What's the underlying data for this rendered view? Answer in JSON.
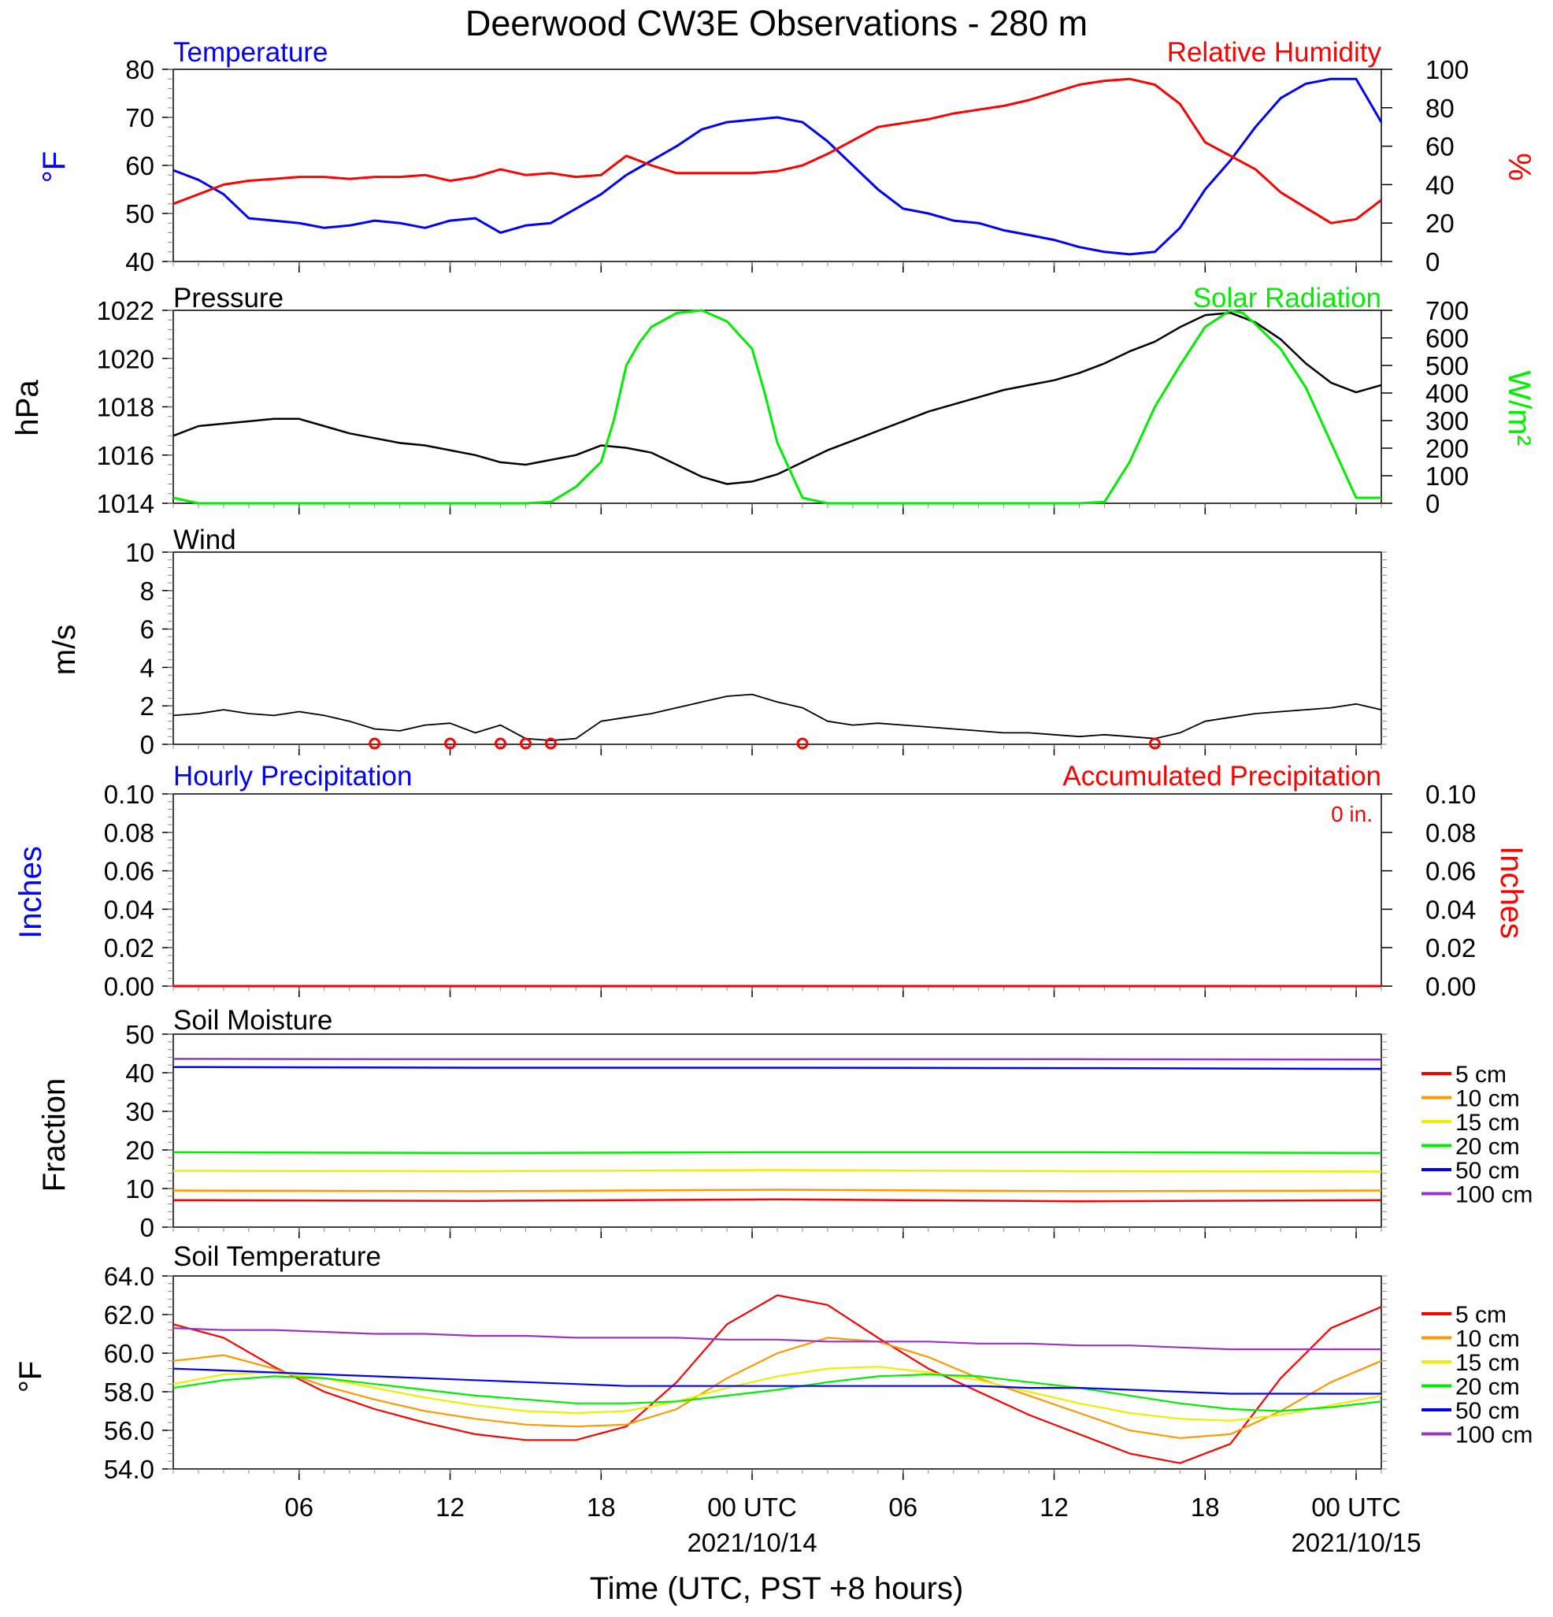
{
  "title": "Deerwood CW3E Observations - 280 m",
  "xaxis": {
    "label": "Time (UTC, PST +8 hours)",
    "ticks": [
      {
        "hour": 5,
        "label": "06",
        "date": ""
      },
      {
        "hour": 11,
        "label": "12",
        "date": ""
      },
      {
        "hour": 17,
        "label": "18",
        "date": ""
      },
      {
        "hour": 23,
        "label": "00 UTC",
        "date": "2021/10/14"
      },
      {
        "hour": 29,
        "label": "06",
        "date": ""
      },
      {
        "hour": 35,
        "label": "12",
        "date": ""
      },
      {
        "hour": 41,
        "label": "18",
        "date": ""
      },
      {
        "hour": 47,
        "label": "00 UTC",
        "date": "2021/10/15"
      }
    ],
    "range_hours": [
      0,
      48
    ]
  },
  "colors": {
    "blue": "#0000ff",
    "red": "#ff0000",
    "green": "#00ee00",
    "black": "#000000",
    "orange": "#ff9900",
    "yellow": "#eeee00",
    "purple": "#9933cc"
  },
  "panels": {
    "temp": {
      "title_left": "Temperature",
      "title_right": "Relative Humidity",
      "ylabel_left": "°F",
      "ylabel_right": "%",
      "ticks_left": [
        "40",
        "50",
        "60",
        "70",
        "80"
      ],
      "ticks_right": [
        "0",
        "20",
        "40",
        "60",
        "80",
        "100"
      ]
    },
    "pressure": {
      "title_left": "Pressure",
      "title_right": "Solar Radiation",
      "ylabel_left": "hPa",
      "ylabel_right": "W/m²",
      "ticks_left": [
        "1014",
        "1016",
        "1018",
        "1020",
        "1022"
      ],
      "ticks_right": [
        "0",
        "100",
        "200",
        "300",
        "400",
        "500",
        "600",
        "700"
      ]
    },
    "wind": {
      "title_left": "Wind",
      "ylabel_left": "m/s",
      "ticks_left": [
        "0",
        "2",
        "4",
        "6",
        "8",
        "10"
      ]
    },
    "precip": {
      "title_left": "Hourly Precipitation",
      "title_right": "Accumulated Precipitation",
      "ylabel_left": "Inches",
      "ylabel_right": "Inches",
      "annotation": "0 in.",
      "ticks_left": [
        "0.00",
        "0.02",
        "0.04",
        "0.06",
        "0.08",
        "0.10"
      ],
      "ticks_right": [
        "0.00",
        "0.02",
        "0.04",
        "0.06",
        "0.08",
        "0.10"
      ]
    },
    "soilm": {
      "title_left": "Soil Moisture",
      "ylabel_left": "Fraction",
      "ticks_left": [
        "0",
        "10",
        "20",
        "30",
        "40",
        "50"
      ],
      "legend": [
        "5 cm",
        "10 cm",
        "15 cm",
        "20 cm",
        "50 cm",
        "100 cm"
      ]
    },
    "soilt": {
      "title_left": "Soil Temperature",
      "ylabel_left": "°F",
      "ticks_left": [
        "54.0",
        "56.0",
        "58.0",
        "60.0",
        "62.0",
        "64.0"
      ],
      "legend": [
        "5 cm",
        "10 cm",
        "15 cm",
        "20 cm",
        "50 cm",
        "100 cm"
      ]
    }
  },
  "chart_data": [
    {
      "type": "line",
      "title": "Temperature",
      "ylabel": "°F",
      "ylim": [
        40,
        80
      ],
      "x": [
        0,
        1,
        2,
        3,
        4,
        5,
        6,
        7,
        8,
        9,
        10,
        11,
        12,
        13,
        14,
        15,
        16,
        17,
        18,
        19,
        20,
        21,
        22,
        23,
        24,
        25,
        26,
        27,
        28,
        29,
        30,
        31,
        32,
        33,
        34,
        35,
        36,
        37,
        38,
        39,
        40,
        41,
        42,
        43,
        44,
        45,
        46,
        47,
        48
      ],
      "series": [
        {
          "name": "Temperature",
          "color": "blue",
          "values": [
            59,
            57,
            54,
            49,
            48.5,
            48,
            47,
            47.5,
            48.5,
            48,
            47,
            48.5,
            49,
            46,
            47.5,
            48,
            51,
            54,
            58,
            61,
            64,
            67.5,
            69,
            69.5,
            70,
            69,
            65,
            60,
            55,
            51,
            50,
            48.5,
            48,
            46.5,
            45.5,
            44.5,
            43,
            42,
            41.5,
            42,
            47,
            55,
            61,
            68,
            74,
            77,
            78,
            78,
            69
          ]
        }
      ]
    },
    {
      "type": "line",
      "title": "Relative Humidity",
      "ylabel": "%",
      "ylim": [
        0,
        100
      ],
      "x": [
        0,
        1,
        2,
        3,
        4,
        5,
        6,
        7,
        8,
        9,
        10,
        11,
        12,
        13,
        14,
        15,
        16,
        17,
        18,
        19,
        20,
        21,
        22,
        23,
        24,
        25,
        26,
        27,
        28,
        29,
        30,
        31,
        32,
        33,
        34,
        35,
        36,
        37,
        38,
        39,
        40,
        41,
        42,
        43,
        44,
        45,
        46,
        47,
        48
      ],
      "series": [
        {
          "name": "Relative Humidity",
          "color": "red",
          "values": [
            30,
            35,
            40,
            42,
            43,
            44,
            44,
            43,
            44,
            44,
            45,
            42,
            44,
            48,
            45,
            46,
            44,
            45,
            55,
            50,
            46,
            46,
            46,
            46,
            47,
            50,
            56,
            63,
            70,
            72,
            74,
            77,
            79,
            81,
            84,
            88,
            92,
            94,
            95,
            92,
            82,
            62,
            55,
            48,
            36,
            28,
            20,
            22,
            32
          ]
        }
      ]
    },
    {
      "type": "line",
      "title": "Pressure",
      "ylabel": "hPa",
      "ylim": [
        1014,
        1022
      ],
      "x": [
        0,
        1,
        2,
        3,
        4,
        5,
        6,
        7,
        8,
        9,
        10,
        11,
        12,
        13,
        14,
        15,
        16,
        17,
        18,
        19,
        20,
        21,
        22,
        23,
        24,
        25,
        26,
        27,
        28,
        29,
        30,
        31,
        32,
        33,
        34,
        35,
        36,
        37,
        38,
        39,
        40,
        41,
        42,
        43,
        44,
        45,
        46,
        47,
        48
      ],
      "series": [
        {
          "name": "Pressure",
          "color": "black",
          "values": [
            1016.8,
            1017.2,
            1017.3,
            1017.4,
            1017.5,
            1017.5,
            1017.2,
            1016.9,
            1016.7,
            1016.5,
            1016.4,
            1016.2,
            1016.0,
            1015.7,
            1015.6,
            1015.8,
            1016.0,
            1016.4,
            1016.3,
            1016.1,
            1015.6,
            1015.1,
            1014.8,
            1014.9,
            1015.2,
            1015.7,
            1016.2,
            1016.6,
            1017.0,
            1017.4,
            1017.8,
            1018.1,
            1018.4,
            1018.7,
            1018.9,
            1019.1,
            1019.4,
            1019.8,
            1020.3,
            1020.7,
            1021.3,
            1021.8,
            1021.9,
            1021.5,
            1020.8,
            1019.8,
            1019.0,
            1018.6,
            1018.9
          ]
        }
      ]
    },
    {
      "type": "line",
      "title": "Solar Radiation",
      "ylabel": "W/m²",
      "ylim": [
        0,
        700
      ],
      "x": [
        0,
        1,
        2,
        3,
        4,
        5,
        6,
        7,
        8,
        9,
        10,
        11,
        12,
        13,
        14,
        15,
        16,
        17,
        17.5,
        18,
        18.5,
        19,
        20,
        21,
        22,
        23,
        23.5,
        24,
        25,
        26,
        27,
        28,
        29,
        30,
        31,
        32,
        33,
        34,
        35,
        36,
        37,
        38,
        39,
        40,
        41,
        42,
        42.5,
        43,
        44,
        45,
        46,
        47,
        48
      ],
      "series": [
        {
          "name": "Solar Radiation",
          "color": "green",
          "values": [
            20,
            0,
            0,
            0,
            0,
            0,
            0,
            0,
            0,
            0,
            0,
            0,
            0,
            0,
            0,
            5,
            60,
            150,
            300,
            500,
            580,
            640,
            690,
            700,
            660,
            560,
            400,
            220,
            20,
            0,
            0,
            0,
            0,
            0,
            0,
            0,
            0,
            0,
            0,
            0,
            5,
            150,
            350,
            500,
            640,
            700,
            690,
            650,
            560,
            420,
            220,
            20,
            20
          ]
        }
      ]
    },
    {
      "type": "line",
      "title": "Wind",
      "ylabel": "m/s",
      "ylim": [
        0,
        10
      ],
      "x": [
        0,
        1,
        2,
        3,
        4,
        5,
        6,
        7,
        8,
        9,
        10,
        11,
        12,
        13,
        14,
        15,
        16,
        17,
        18,
        19,
        20,
        21,
        22,
        23,
        24,
        25,
        26,
        27,
        28,
        29,
        30,
        31,
        32,
        33,
        34,
        35,
        36,
        37,
        38,
        39,
        40,
        41,
        42,
        43,
        44,
        45,
        46,
        47,
        48
      ],
      "series": [
        {
          "name": "Wind",
          "color": "black",
          "values": [
            1.5,
            1.6,
            1.8,
            1.6,
            1.5,
            1.7,
            1.5,
            1.2,
            0.8,
            0.7,
            1.0,
            1.1,
            0.6,
            1.0,
            0.3,
            0.2,
            0.3,
            1.2,
            1.4,
            1.6,
            1.9,
            2.2,
            2.5,
            2.6,
            2.2,
            1.9,
            1.2,
            1.0,
            1.1,
            1.0,
            0.9,
            0.8,
            0.7,
            0.6,
            0.6,
            0.5,
            0.4,
            0.5,
            0.4,
            0.3,
            0.6,
            1.2,
            1.4,
            1.6,
            1.7,
            1.8,
            1.9,
            2.1,
            1.8
          ]
        }
      ],
      "calm_markers_hours": [
        8,
        11,
        13,
        14,
        15,
        25,
        39
      ]
    },
    {
      "type": "line",
      "title": "Hourly Precipitation",
      "ylabel": "Inches",
      "ylim": [
        0,
        0.1
      ],
      "x": [
        0,
        48
      ],
      "series": [
        {
          "name": "Hourly Precipitation",
          "color": "blue",
          "values": [
            0,
            0
          ]
        },
        {
          "name": "Accumulated Precipitation",
          "color": "red",
          "values": [
            0,
            0
          ]
        }
      ]
    },
    {
      "type": "line",
      "title": "Soil Moisture",
      "ylabel": "Fraction",
      "ylim": [
        0,
        50
      ],
      "x": [
        0,
        12,
        24,
        36,
        48
      ],
      "series": [
        {
          "name": "5 cm",
          "color": "red",
          "values": [
            7.0,
            6.8,
            7.2,
            6.7,
            7.0
          ]
        },
        {
          "name": "10 cm",
          "color": "orange",
          "values": [
            9.5,
            9.3,
            9.7,
            9.3,
            9.5
          ]
        },
        {
          "name": "15 cm",
          "color": "yellow",
          "values": [
            14.6,
            14.5,
            14.8,
            14.5,
            14.4
          ]
        },
        {
          "name": "20 cm",
          "color": "green",
          "values": [
            19.4,
            19.2,
            19.4,
            19.4,
            19.2
          ]
        },
        {
          "name": "50 cm",
          "color": "blue",
          "values": [
            41.5,
            41.3,
            41.3,
            41.2,
            41.0
          ]
        },
        {
          "name": "100 cm",
          "color": "purple",
          "values": [
            43.6,
            43.5,
            43.5,
            43.5,
            43.4
          ]
        }
      ]
    },
    {
      "type": "line",
      "title": "Soil Temperature",
      "ylabel": "°F",
      "ylim": [
        54,
        64
      ],
      "x": [
        0,
        2,
        4,
        6,
        8,
        10,
        12,
        14,
        16,
        18,
        20,
        22,
        24,
        26,
        28,
        30,
        32,
        34,
        36,
        38,
        40,
        42,
        44,
        46,
        48
      ],
      "series": [
        {
          "name": "5 cm",
          "color": "red",
          "values": [
            61.5,
            60.8,
            59.3,
            58.0,
            57.1,
            56.4,
            55.8,
            55.5,
            55.5,
            56.2,
            58.5,
            61.5,
            63.0,
            62.5,
            60.8,
            59.2,
            58.0,
            56.8,
            55.8,
            54.8,
            54.3,
            55.3,
            58.7,
            61.3,
            62.4
          ]
        },
        {
          "name": "10 cm",
          "color": "orange",
          "values": [
            59.6,
            59.9,
            59.2,
            58.3,
            57.6,
            57.0,
            56.6,
            56.3,
            56.2,
            56.3,
            57.1,
            58.7,
            60.0,
            60.8,
            60.6,
            59.8,
            58.7,
            57.8,
            56.9,
            56.0,
            55.6,
            55.8,
            57.0,
            58.5,
            59.6
          ]
        },
        {
          "name": "15 cm",
          "color": "yellow",
          "values": [
            58.4,
            58.9,
            59.0,
            58.7,
            58.2,
            57.7,
            57.3,
            57.0,
            56.9,
            57.0,
            57.5,
            58.2,
            58.8,
            59.2,
            59.3,
            59.0,
            58.6,
            58.0,
            57.4,
            56.9,
            56.6,
            56.5,
            56.8,
            57.3,
            57.8
          ]
        },
        {
          "name": "20 cm",
          "color": "green",
          "values": [
            58.2,
            58.6,
            58.8,
            58.7,
            58.4,
            58.1,
            57.8,
            57.6,
            57.4,
            57.4,
            57.5,
            57.8,
            58.1,
            58.5,
            58.8,
            58.9,
            58.8,
            58.5,
            58.2,
            57.8,
            57.4,
            57.1,
            57.0,
            57.2,
            57.5
          ]
        },
        {
          "name": "50 cm",
          "color": "blue",
          "values": [
            59.2,
            59.1,
            59.0,
            58.9,
            58.8,
            58.7,
            58.6,
            58.5,
            58.4,
            58.3,
            58.3,
            58.3,
            58.3,
            58.3,
            58.3,
            58.3,
            58.3,
            58.2,
            58.2,
            58.1,
            58.0,
            57.9,
            57.9,
            57.9,
            57.9
          ]
        },
        {
          "name": "100 cm",
          "color": "purple",
          "values": [
            61.3,
            61.2,
            61.2,
            61.1,
            61.0,
            61.0,
            60.9,
            60.9,
            60.8,
            60.8,
            60.8,
            60.7,
            60.7,
            60.6,
            60.6,
            60.6,
            60.5,
            60.5,
            60.4,
            60.4,
            60.3,
            60.2,
            60.2,
            60.2,
            60.2
          ]
        }
      ]
    }
  ]
}
